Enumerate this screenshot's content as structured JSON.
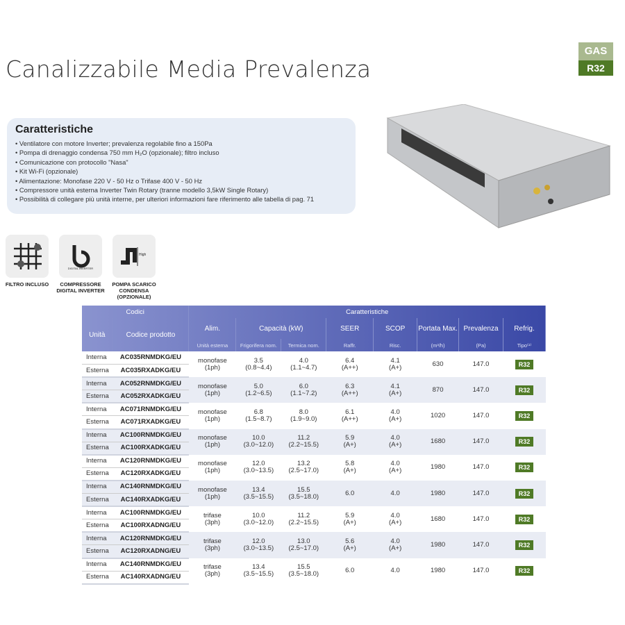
{
  "title": "Canalizzabile Media Prevalenza",
  "gas_badge": {
    "top": "GAS",
    "bottom": "R32"
  },
  "features": {
    "heading": "Caratteristiche",
    "items": [
      "Ventilatore con motore Inverter; prevalenza regolabile fino a 150Pa",
      "Pompa di drenaggio condensa 750 mm H₂O (opzionale); filtro incluso",
      "Comunicazione con protocollo \"Nasa\"",
      "Kit Wi-Fi (opzionale)",
      "Alimentazione: Monofase 220 V - 50 Hz o Trifase 400 V - 50 Hz",
      "Compressore unità esterna Inverter Twin Rotary (tranne modello 3,5kW Single Rotary)",
      "Possibilità di collegare più unità interne, per ulteriori informazioni fare riferimento alle tabella di pag. 71"
    ]
  },
  "icons": [
    {
      "name": "filter-icon",
      "label": "FILTRO INCLUSO"
    },
    {
      "name": "digital-inverter-icon",
      "label": "COMPRESSORE DIGITAL INVERTER",
      "logo_text": "DIGITAL INVERTER"
    },
    {
      "name": "drain-pump-icon",
      "label": "POMPA SCARICO CONDENSA (OPZIONALE)",
      "logo_text": "High"
    }
  ],
  "table": {
    "group_codici": "Codici",
    "group_caratteristiche": "Caratteristiche",
    "headers": {
      "unita": "Unità",
      "codice": "Codice prodotto",
      "alim": "Alim.",
      "capacita": "Capacità (kW)",
      "seer": "SEER",
      "scop": "SCOP",
      "portata": "Portata Max.",
      "prevalenza": "Prevalenza",
      "refrig": "Refrig."
    },
    "subheaders": {
      "alim": "Unità esterna",
      "frig": "Frigorifera nom.",
      "term": "Termica nom.",
      "seer": "Raffr.",
      "scop": "Risc.",
      "portata": "(m³/h)",
      "prevalenza": "(Pa)",
      "refrig": "Tipo⁽¹⁾"
    },
    "unit_int": "Interna",
    "unit_ext": "Esterna",
    "rows": [
      {
        "int": "AC035RNMDKG/EU",
        "ext": "AC035RXADKG/EU",
        "alim": "monofase",
        "alim2": "(1ph)",
        "frig": "3.5",
        "frig2": "(0.8~4.4)",
        "term": "4.0",
        "term2": "(1.1~4.7)",
        "seer": "6.4",
        "seer2": "(A++)",
        "scop": "4.1",
        "scop2": "(A+)",
        "portata": "630",
        "prev": "147.0",
        "refrig": "R32"
      },
      {
        "int": "AC052RNMDKG/EU",
        "ext": "AC052RXADKG/EU",
        "alim": "monofase",
        "alim2": "(1ph)",
        "frig": "5.0",
        "frig2": "(1.2~6.5)",
        "term": "6.0",
        "term2": "(1.1~7.2)",
        "seer": "6.3",
        "seer2": "(A++)",
        "scop": "4.1",
        "scop2": "(A+)",
        "portata": "870",
        "prev": "147.0",
        "refrig": "R32"
      },
      {
        "int": "AC071RNMDKG/EU",
        "ext": "AC071RXADKG/EU",
        "alim": "monofase",
        "alim2": "(1ph)",
        "frig": "6.8",
        "frig2": "(1.5~8.7)",
        "term": "8.0",
        "term2": "(1.9~9.0)",
        "seer": "6.1",
        "seer2": "(A++)",
        "scop": "4.0",
        "scop2": "(A+)",
        "portata": "1020",
        "prev": "147.0",
        "refrig": "R32"
      },
      {
        "int": "AC100RNMDKG/EU",
        "ext": "AC100RXADKG/EU",
        "alim": "monofase",
        "alim2": "(1ph)",
        "frig": "10.0",
        "frig2": "(3.0~12.0)",
        "term": "11.2",
        "term2": "(2.2~15.5)",
        "seer": "5.9",
        "seer2": "(A+)",
        "scop": "4.0",
        "scop2": "(A+)",
        "portata": "1680",
        "prev": "147.0",
        "refrig": "R32"
      },
      {
        "int": "AC120RNMDKG/EU",
        "ext": "AC120RXADKG/EU",
        "alim": "monofase",
        "alim2": "(1ph)",
        "frig": "12.0",
        "frig2": "(3.0~13.5)",
        "term": "13.2",
        "term2": "(2.5~17.0)",
        "seer": "5.8",
        "seer2": "(A+)",
        "scop": "4.0",
        "scop2": "(A+)",
        "portata": "1980",
        "prev": "147.0",
        "refrig": "R32"
      },
      {
        "int": "AC140RNMDKG/EU",
        "ext": "AC140RXADKG/EU",
        "alim": "monofase",
        "alim2": "(1ph)",
        "frig": "13.4",
        "frig2": "(3.5~15.5)",
        "term": "15.5",
        "term2": "(3.5~18.0)",
        "seer": "6.0",
        "seer2": "",
        "scop": "4.0",
        "scop2": "",
        "portata": "1980",
        "prev": "147.0",
        "refrig": "R32"
      },
      {
        "int": "AC100RNMDKG/EU",
        "ext": "AC100RXADNG/EU",
        "alim": "trifase",
        "alim2": "(3ph)",
        "frig": "10.0",
        "frig2": "(3.0~12.0)",
        "term": "11.2",
        "term2": "(2.2~15.5)",
        "seer": "5.9",
        "seer2": "(A+)",
        "scop": "4.0",
        "scop2": "(A+)",
        "portata": "1680",
        "prev": "147.0",
        "refrig": "R32"
      },
      {
        "int": "AC120RNMDKG/EU",
        "ext": "AC120RXADNG/EU",
        "alim": "trifase",
        "alim2": "(3ph)",
        "frig": "12.0",
        "frig2": "(3.0~13.5)",
        "term": "13.0",
        "term2": "(2.5~17.0)",
        "seer": "5.6",
        "seer2": "(A+)",
        "scop": "4.0",
        "scop2": "(A+)",
        "portata": "1980",
        "prev": "147.0",
        "refrig": "R32"
      },
      {
        "int": "AC140RNMDKG/EU",
        "ext": "AC140RXADNG/EU",
        "alim": "trifase",
        "alim2": "(3ph)",
        "frig": "13.4",
        "frig2": "(3.5~15.5)",
        "term": "15.5",
        "term2": "(3.5~18.0)",
        "seer": "6.0",
        "seer2": "",
        "scop": "4.0",
        "scop2": "",
        "portata": "1980",
        "prev": "147.0",
        "refrig": "R32"
      }
    ]
  }
}
